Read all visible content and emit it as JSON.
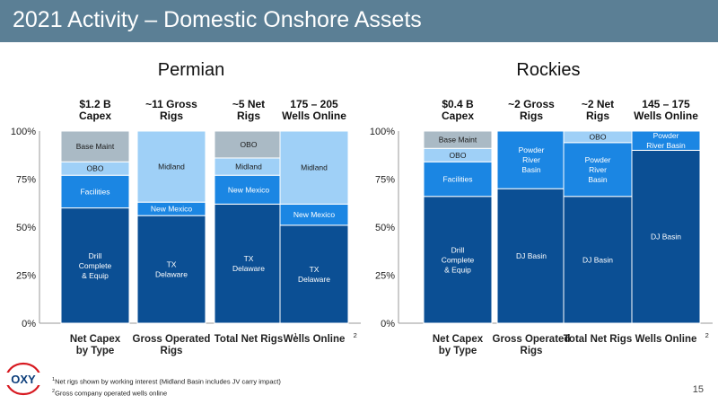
{
  "header": {
    "title": "2021 Activity – Domestic Onshore Assets"
  },
  "colors": {
    "header_bg": "#5b7f95",
    "dark_blue": "#0b4f94",
    "mid_blue": "#1b86e3",
    "light_blue": "#9fd0f7",
    "gray": "#aabac5"
  },
  "chart_data": [
    {
      "type": "bar",
      "stacked": true,
      "title": "Permian",
      "ylim": [
        0,
        100
      ],
      "yticks": [
        "0%",
        "25%",
        "50%",
        "75%",
        "100%"
      ],
      "categories": [
        {
          "label": [
            "Net Capex",
            "by Type"
          ],
          "sup": "",
          "header": [
            "$1.2 B",
            "Capex"
          ]
        },
        {
          "label": [
            "Gross Operated",
            "Rigs"
          ],
          "sup": "",
          "header": [
            "~11 Gross",
            "Rigs"
          ]
        },
        {
          "label": [
            "Total Net Rigs"
          ],
          "sup": "1",
          "header": [
            "~5 Net",
            "Rigs"
          ]
        },
        {
          "label": [
            "Wells Online"
          ],
          "sup": "2",
          "header": [
            "175 – 205",
            "Wells Online"
          ]
        }
      ],
      "stacks": [
        [
          {
            "label": [
              "Drill",
              "Complete",
              "& Equip"
            ],
            "value": 60,
            "color": "#0b4f94"
          },
          {
            "label": [
              "Facilities"
            ],
            "value": 17,
            "color": "#1b86e3"
          },
          {
            "label": [
              "OBO"
            ],
            "value": 7,
            "color": "#9fd0f7"
          },
          {
            "label": [
              "Base Maint"
            ],
            "value": 16,
            "color": "#aabac5"
          }
        ],
        [
          {
            "label": [
              "TX",
              "Delaware"
            ],
            "value": 56,
            "color": "#0b4f94"
          },
          {
            "label": [
              "New Mexico"
            ],
            "value": 7,
            "color": "#1b86e3"
          },
          {
            "label": [
              "Midland"
            ],
            "value": 37,
            "color": "#9fd0f7"
          }
        ],
        [
          {
            "label": [
              "TX",
              "Delaware"
            ],
            "value": 62,
            "color": "#0b4f94"
          },
          {
            "label": [
              "New Mexico"
            ],
            "value": 15,
            "color": "#1b86e3"
          },
          {
            "label": [
              "Midland"
            ],
            "value": 9,
            "color": "#9fd0f7"
          },
          {
            "label": [
              "OBO"
            ],
            "value": 14,
            "color": "#aabac5"
          }
        ],
        [
          {
            "label": [
              "TX",
              "Delaware"
            ],
            "value": 51,
            "color": "#0b4f94"
          },
          {
            "label": [
              "New Mexico"
            ],
            "value": 11,
            "color": "#1b86e3"
          },
          {
            "label": [
              "Midland"
            ],
            "value": 38,
            "color": "#9fd0f7"
          }
        ]
      ]
    },
    {
      "type": "bar",
      "stacked": true,
      "title": "Rockies",
      "ylim": [
        0,
        100
      ],
      "yticks": [
        "0%",
        "25%",
        "50%",
        "75%",
        "100%"
      ],
      "categories": [
        {
          "label": [
            "Net Capex",
            "by Type"
          ],
          "sup": "",
          "header": [
            "$0.4 B",
            "Capex"
          ]
        },
        {
          "label": [
            "Gross Operated",
            "Rigs"
          ],
          "sup": "",
          "header": [
            "~2 Gross",
            "Rigs"
          ]
        },
        {
          "label": [
            "Total Net Rigs"
          ],
          "sup": "",
          "header": [
            "~2 Net",
            "Rigs"
          ]
        },
        {
          "label": [
            "Wells Online"
          ],
          "sup": "2",
          "header": [
            "145 – 175",
            "Wells Online"
          ]
        }
      ],
      "stacks": [
        [
          {
            "label": [
              "Drill",
              "Complete",
              "& Equip"
            ],
            "value": 66,
            "color": "#0b4f94"
          },
          {
            "label": [
              "Facilities"
            ],
            "value": 18,
            "color": "#1b86e3"
          },
          {
            "label": [
              "OBO"
            ],
            "value": 7,
            "color": "#9fd0f7"
          },
          {
            "label": [
              "Base Maint"
            ],
            "value": 9,
            "color": "#aabac5"
          }
        ],
        [
          {
            "label": [
              "DJ Basin"
            ],
            "value": 70,
            "color": "#0b4f94"
          },
          {
            "label": [
              "Powder",
              "River",
              "Basin"
            ],
            "value": 30,
            "color": "#1b86e3"
          }
        ],
        [
          {
            "label": [
              "DJ Basin"
            ],
            "value": 66,
            "color": "#0b4f94"
          },
          {
            "label": [
              "Powder",
              "River",
              "Basin"
            ],
            "value": 28,
            "color": "#1b86e3"
          },
          {
            "label": [
              "OBO"
            ],
            "value": 6,
            "color": "#9fd0f7"
          }
        ],
        [
          {
            "label": [
              "DJ Basin"
            ],
            "value": 90,
            "color": "#0b4f94"
          },
          {
            "label": [
              "Powder",
              "River Basin"
            ],
            "value": 10,
            "color": "#1b86e3"
          }
        ]
      ]
    }
  ],
  "footnotes": [
    {
      "sup": "1",
      "text": "Net rigs shown by working interest (Midland Basin includes JV carry impact)"
    },
    {
      "sup": "2",
      "text": "Gross company operated wells online"
    }
  ],
  "logo": {
    "text": "OXY"
  },
  "page_number": "15"
}
